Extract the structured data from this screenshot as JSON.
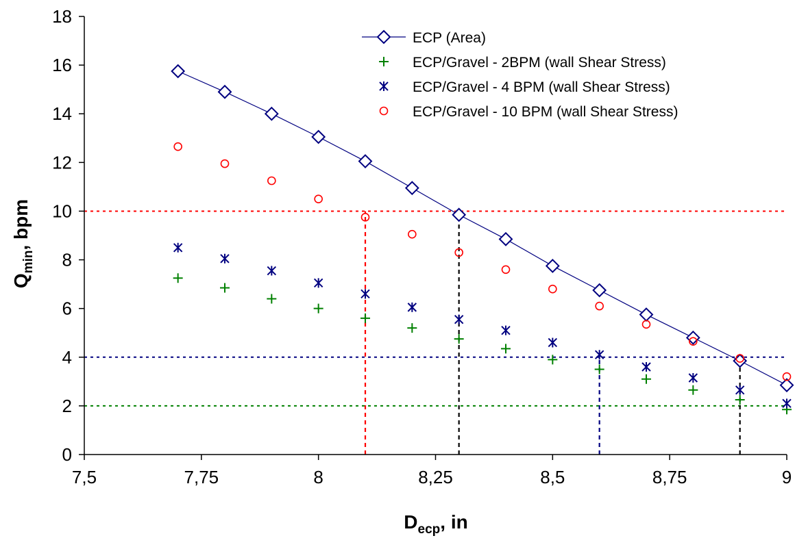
{
  "chart_data": {
    "type": "scatter",
    "xlabel_main": "D",
    "xlabel_sub": "ecp",
    "xlabel_rest": ", in",
    "ylabel_main": "Q",
    "ylabel_sub": "min",
    "ylabel_rest": ", bpm",
    "xlim": [
      7.5,
      9
    ],
    "ylim": [
      0,
      18
    ],
    "x_ticks": [
      7.5,
      7.75,
      8,
      8.25,
      8.5,
      8.75,
      9
    ],
    "x_tick_labels": [
      "7,5",
      "7,75",
      "8",
      "8,25",
      "8,5",
      "8,75",
      "9"
    ],
    "y_ticks": [
      0,
      2,
      4,
      6,
      8,
      10,
      12,
      14,
      16,
      18
    ],
    "y_tick_labels": [
      "0",
      "2",
      "4",
      "6",
      "8",
      "10",
      "12",
      "14",
      "16",
      "18"
    ],
    "grid": false,
    "legend_position": "top-right",
    "series": [
      {
        "name": "ECP (Area)",
        "marker": "diamond",
        "line": true,
        "color": "#000080",
        "x": [
          7.7,
          7.8,
          7.9,
          8.0,
          8.1,
          8.2,
          8.3,
          8.4,
          8.5,
          8.6,
          8.7,
          8.8,
          8.9,
          9.0
        ],
        "y": [
          15.75,
          14.9,
          14.0,
          13.05,
          12.05,
          10.95,
          9.85,
          8.85,
          7.75,
          6.75,
          5.75,
          4.8,
          3.85,
          2.85
        ]
      },
      {
        "name": "ECP/Gravel - 2BPM (wall Shear Stress)",
        "marker": "plus",
        "line": false,
        "color": "#008000",
        "x": [
          7.7,
          7.8,
          7.9,
          8.0,
          8.1,
          8.2,
          8.3,
          8.4,
          8.5,
          8.6,
          8.7,
          8.8,
          8.9,
          9.0
        ],
        "y": [
          7.25,
          6.85,
          6.4,
          6.0,
          5.6,
          5.2,
          4.75,
          4.35,
          3.9,
          3.5,
          3.1,
          2.65,
          2.25,
          1.85
        ]
      },
      {
        "name": "ECP/Gravel - 4 BPM (wall Shear Stress)",
        "marker": "asterisk",
        "line": false,
        "color": "#000080",
        "x": [
          7.7,
          7.8,
          7.9,
          8.0,
          8.1,
          8.2,
          8.3,
          8.4,
          8.5,
          8.6,
          8.7,
          8.8,
          8.9,
          9.0
        ],
        "y": [
          8.5,
          8.05,
          7.55,
          7.05,
          6.6,
          6.05,
          5.55,
          5.1,
          4.6,
          4.1,
          3.6,
          3.15,
          2.65,
          2.1
        ]
      },
      {
        "name": "ECP/Gravel - 10 BPM (wall Shear Stress)",
        "marker": "circle",
        "line": false,
        "color": "#ff0000",
        "x": [
          7.7,
          7.8,
          7.9,
          8.0,
          8.1,
          8.2,
          8.3,
          8.4,
          8.5,
          8.6,
          8.7,
          8.8,
          8.9,
          9.0
        ],
        "y": [
          12.65,
          11.95,
          11.25,
          10.5,
          9.75,
          9.05,
          8.3,
          7.6,
          6.8,
          6.1,
          5.35,
          4.65,
          3.95,
          3.2
        ]
      }
    ],
    "reference_lines": [
      {
        "orientation": "horizontal",
        "value": 10,
        "color": "#ff0000"
      },
      {
        "orientation": "horizontal",
        "value": 4,
        "color": "#000080"
      },
      {
        "orientation": "horizontal",
        "value": 2,
        "color": "#008000"
      },
      {
        "orientation": "vertical",
        "value": 8.1,
        "to_y": 10,
        "color": "#ff0000"
      },
      {
        "orientation": "vertical",
        "value": 8.3,
        "to_y": 10,
        "color": "#000000"
      },
      {
        "orientation": "vertical",
        "value": 8.6,
        "to_y": 4,
        "color": "#000080"
      },
      {
        "orientation": "vertical",
        "value": 8.9,
        "to_y": 4,
        "color": "#000000"
      }
    ]
  }
}
